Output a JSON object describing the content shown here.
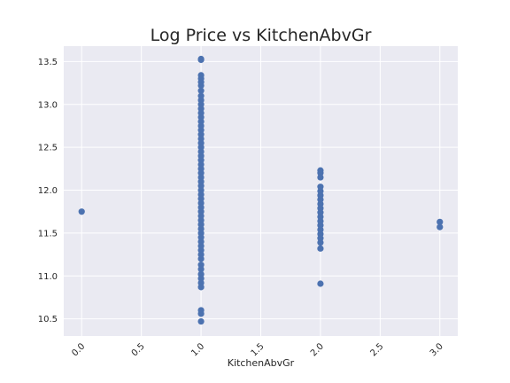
{
  "chart_data": {
    "type": "scatter",
    "title": "Log Price vs KitchenAbvGr",
    "xlabel": "KitchenAbvGr",
    "ylabel": "",
    "xlim": [
      -0.15,
      3.15
    ],
    "ylim": [
      10.3,
      13.68
    ],
    "xticks": [
      0.0,
      0.5,
      1.0,
      1.5,
      2.0,
      2.5,
      3.0
    ],
    "xtick_labels": [
      "0.0",
      "0.5",
      "1.0",
      "1.5",
      "2.0",
      "2.5",
      "3.0"
    ],
    "yticks": [
      10.5,
      11.0,
      11.5,
      12.0,
      12.5,
      13.0,
      13.5
    ],
    "ytick_labels": [
      "10.5",
      "11.0",
      "11.5",
      "12.0",
      "12.5",
      "13.0",
      "13.5"
    ],
    "grid": true,
    "color": "#4c72b0",
    "background": "#eaeaf2",
    "points": [
      {
        "x": 0,
        "y": 11.75
      },
      {
        "x": 1,
        "y": 13.53
      },
      {
        "x": 1,
        "y": 13.52
      },
      {
        "x": 1,
        "y": 13.34
      },
      {
        "x": 1,
        "y": 13.3
      },
      {
        "x": 1,
        "y": 13.26
      },
      {
        "x": 1,
        "y": 13.22
      },
      {
        "x": 1,
        "y": 13.16
      },
      {
        "x": 1,
        "y": 13.1
      },
      {
        "x": 1,
        "y": 13.05
      },
      {
        "x": 1,
        "y": 13.0
      },
      {
        "x": 1,
        "y": 12.95
      },
      {
        "x": 1,
        "y": 12.9
      },
      {
        "x": 1,
        "y": 12.85
      },
      {
        "x": 1,
        "y": 12.8
      },
      {
        "x": 1,
        "y": 12.75
      },
      {
        "x": 1,
        "y": 12.7
      },
      {
        "x": 1,
        "y": 12.65
      },
      {
        "x": 1,
        "y": 12.6
      },
      {
        "x": 1,
        "y": 12.55
      },
      {
        "x": 1,
        "y": 12.5
      },
      {
        "x": 1,
        "y": 12.45
      },
      {
        "x": 1,
        "y": 12.4
      },
      {
        "x": 1,
        "y": 12.35
      },
      {
        "x": 1,
        "y": 12.3
      },
      {
        "x": 1,
        "y": 12.25
      },
      {
        "x": 1,
        "y": 12.2
      },
      {
        "x": 1,
        "y": 12.15
      },
      {
        "x": 1,
        "y": 12.1
      },
      {
        "x": 1,
        "y": 12.05
      },
      {
        "x": 1,
        "y": 12.0
      },
      {
        "x": 1,
        "y": 11.95
      },
      {
        "x": 1,
        "y": 11.9
      },
      {
        "x": 1,
        "y": 11.85
      },
      {
        "x": 1,
        "y": 11.8
      },
      {
        "x": 1,
        "y": 11.75
      },
      {
        "x": 1,
        "y": 11.7
      },
      {
        "x": 1,
        "y": 11.65
      },
      {
        "x": 1,
        "y": 11.6
      },
      {
        "x": 1,
        "y": 11.55
      },
      {
        "x": 1,
        "y": 11.5
      },
      {
        "x": 1,
        "y": 11.45
      },
      {
        "x": 1,
        "y": 11.4
      },
      {
        "x": 1,
        "y": 11.35
      },
      {
        "x": 1,
        "y": 11.3
      },
      {
        "x": 1,
        "y": 11.25
      },
      {
        "x": 1,
        "y": 11.2
      },
      {
        "x": 1,
        "y": 11.13
      },
      {
        "x": 1,
        "y": 11.08
      },
      {
        "x": 1,
        "y": 11.02
      },
      {
        "x": 1,
        "y": 10.97
      },
      {
        "x": 1,
        "y": 10.92
      },
      {
        "x": 1,
        "y": 10.87
      },
      {
        "x": 1,
        "y": 10.6
      },
      {
        "x": 1,
        "y": 10.56
      },
      {
        "x": 1,
        "y": 10.47
      },
      {
        "x": 2,
        "y": 12.23
      },
      {
        "x": 2,
        "y": 12.2
      },
      {
        "x": 2,
        "y": 12.15
      },
      {
        "x": 2,
        "y": 12.04
      },
      {
        "x": 2,
        "y": 11.99
      },
      {
        "x": 2,
        "y": 11.94
      },
      {
        "x": 2,
        "y": 11.89
      },
      {
        "x": 2,
        "y": 11.84
      },
      {
        "x": 2,
        "y": 11.79
      },
      {
        "x": 2,
        "y": 11.74
      },
      {
        "x": 2,
        "y": 11.69
      },
      {
        "x": 2,
        "y": 11.64
      },
      {
        "x": 2,
        "y": 11.59
      },
      {
        "x": 2,
        "y": 11.54
      },
      {
        "x": 2,
        "y": 11.49
      },
      {
        "x": 2,
        "y": 11.44
      },
      {
        "x": 2,
        "y": 11.39
      },
      {
        "x": 2,
        "y": 11.32
      },
      {
        "x": 2,
        "y": 10.91
      },
      {
        "x": 3,
        "y": 11.63
      },
      {
        "x": 3,
        "y": 11.57
      }
    ]
  }
}
